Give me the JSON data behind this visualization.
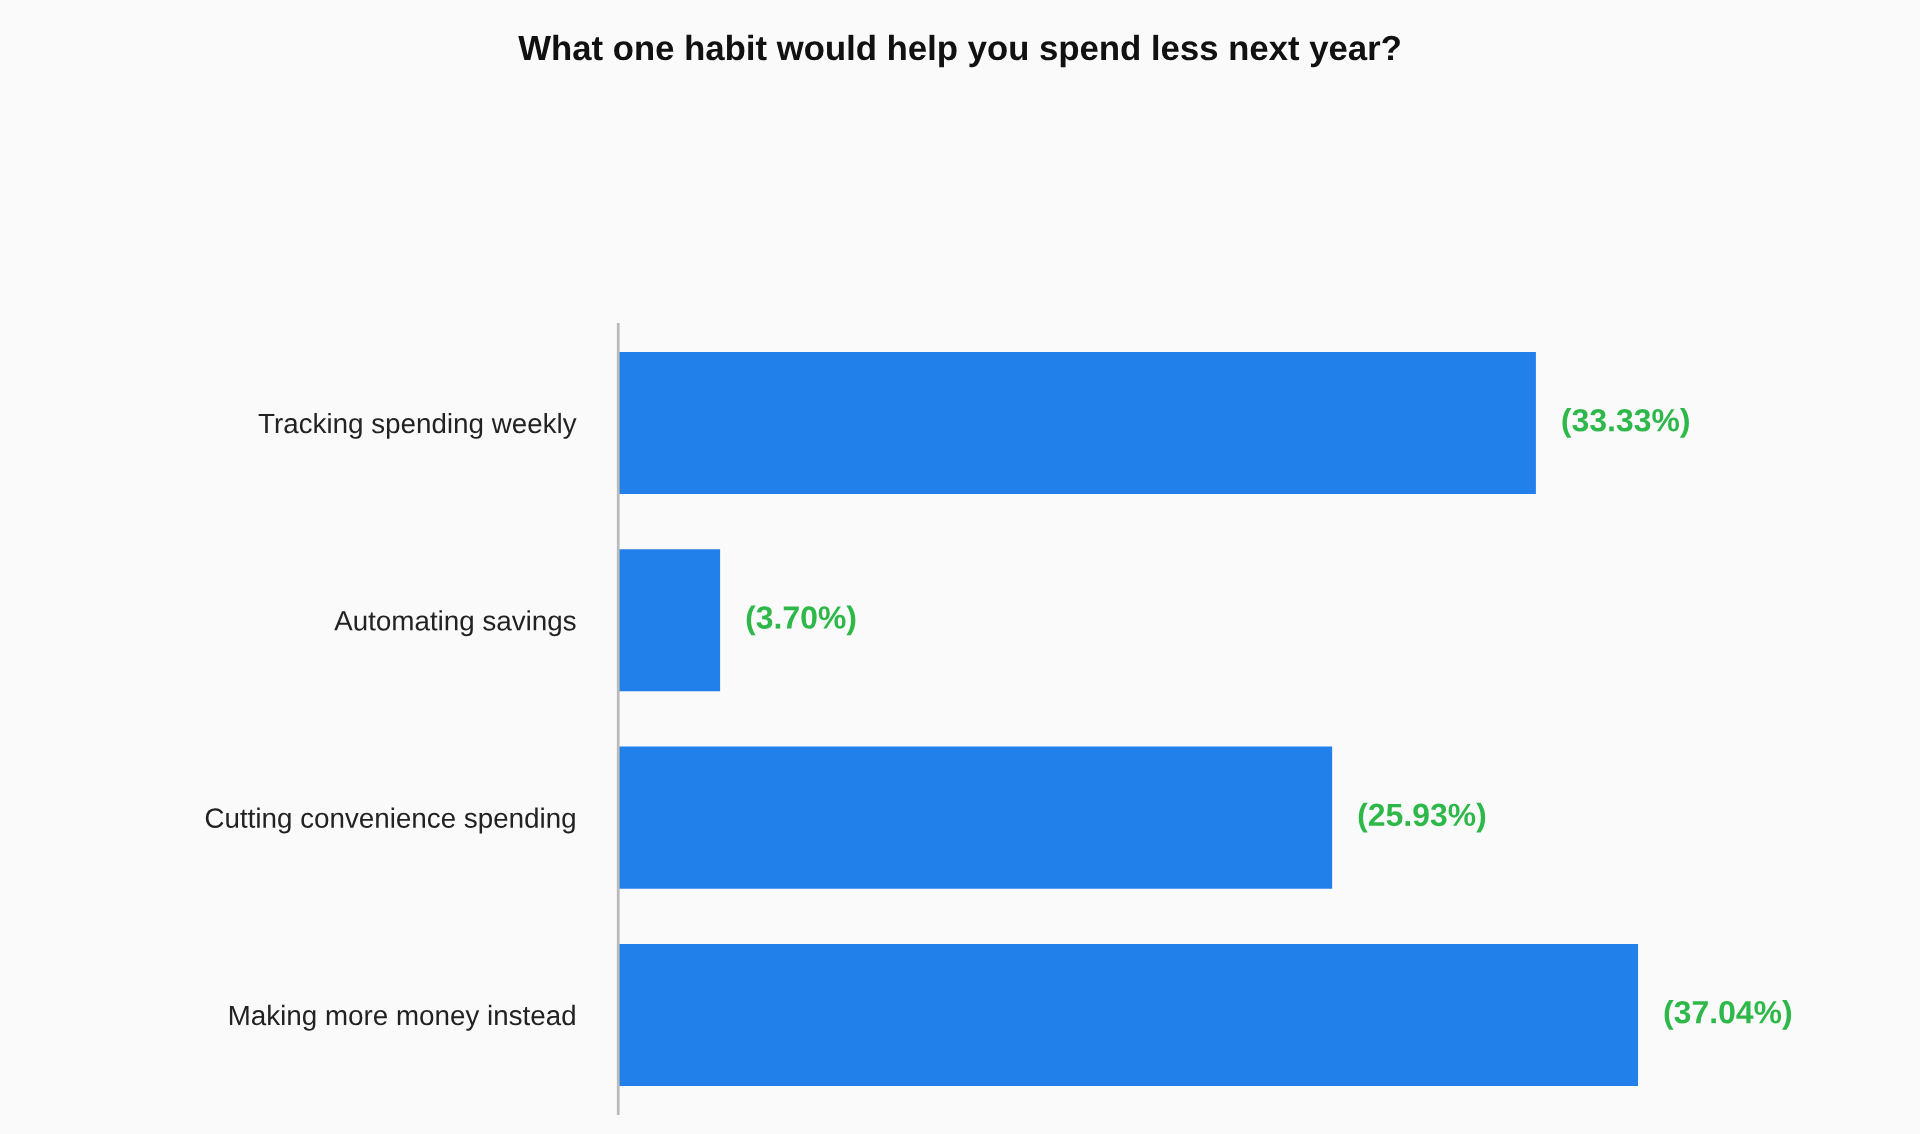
{
  "chart_data": {
    "type": "bar",
    "orientation": "horizontal",
    "title": "What one habit would help you spend less next year?",
    "categories": [
      "Tracking spending weekly",
      "Automating savings",
      "Cutting convenience spending",
      "Making more money instead"
    ],
    "values": [
      33.33,
      3.7,
      25.93,
      37.04
    ],
    "value_labels": [
      "(33.33%)",
      "(3.70%)",
      "(25.93%)",
      "(37.04%)"
    ],
    "color": "#2180ea",
    "grid": false,
    "legend": false
  }
}
